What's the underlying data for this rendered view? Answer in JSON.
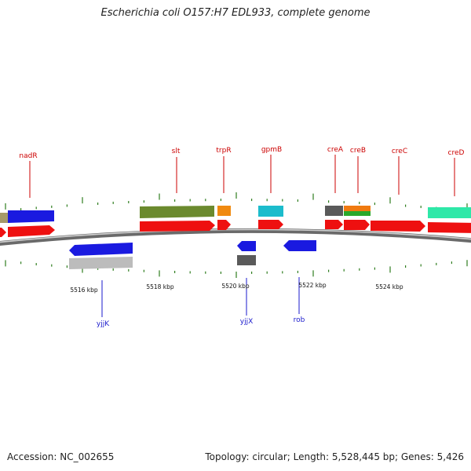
{
  "title": "Escherichia coli O157:H7 EDL933, complete genome",
  "footer": {
    "accession": "Accession: NC_002655",
    "summary": "Topology: circular; Length: 5,528,445 bp; Genes: 5,426"
  },
  "colors": {
    "tick": "#2e7d1e",
    "upper_label": "#cc0000",
    "lower_label": "#1a1acc",
    "backbone": "#8a8a8a"
  },
  "kbp_labels": [
    "5516 kbp",
    "5518 kbp",
    "5520 kbp",
    "5522 kbp",
    "5524 kbp"
  ],
  "upper_labels": [
    "nadR",
    "slt",
    "trpR",
    "gpmB",
    "creA",
    "creB",
    "creC",
    "creD"
  ],
  "lower_labels": [
    "yjjK",
    "yjjX",
    "rob"
  ]
}
